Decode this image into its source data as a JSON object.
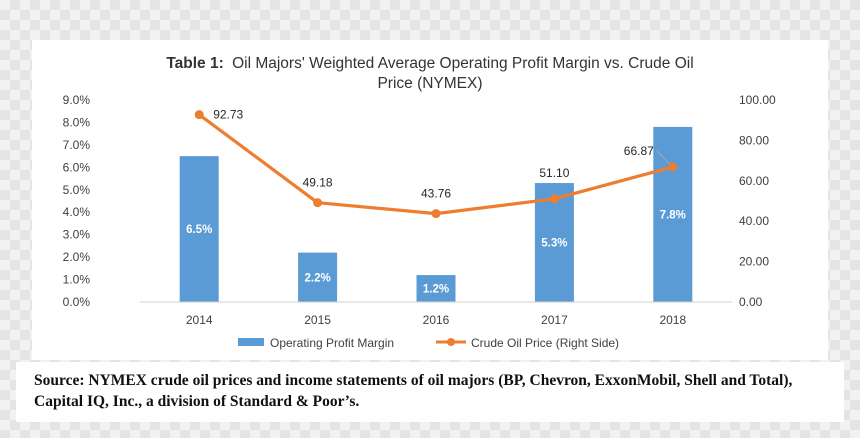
{
  "chart_data": {
    "type": "bar+line",
    "title": {
      "prefix": "Table 1:",
      "line1": "Oil Majors' Weighted Average Operating Profit Margin vs. Crude Oil",
      "line2": "Price (NYMEX)"
    },
    "categories": [
      "2014",
      "2015",
      "2016",
      "2017",
      "2018"
    ],
    "bar_series": {
      "name": "Operating Profit Margin",
      "values": [
        6.5,
        2.2,
        1.2,
        5.3,
        7.8
      ],
      "labels": [
        "6.5%",
        "2.2%",
        "1.2%",
        "5.3%",
        "7.8%"
      ],
      "color": "#5b9bd5",
      "axis": "left"
    },
    "line_series": {
      "name": "Crude Oil Price (Right Side)",
      "values": [
        92.73,
        49.18,
        43.76,
        51.1,
        66.87
      ],
      "labels": [
        "92.73",
        "49.18",
        "43.76",
        "51.10",
        "66.87"
      ],
      "color": "#ed7d31",
      "axis": "right"
    },
    "left_axis": {
      "min": 0,
      "max": 9,
      "step": 1,
      "ticks": [
        "0.0%",
        "1.0%",
        "2.0%",
        "3.0%",
        "4.0%",
        "5.0%",
        "6.0%",
        "7.0%",
        "8.0%",
        "9.0%"
      ]
    },
    "right_axis": {
      "min": 0,
      "max": 100,
      "step": 20,
      "ticks": [
        "0.00",
        "20.00",
        "40.00",
        "60.00",
        "80.00",
        "100.00"
      ]
    },
    "grid": false,
    "legend_position": "bottom"
  },
  "caption": "Source: NYMEX crude oil prices and income statements of oil majors (BP, Chevron, ExxonMobil, Shell and Total), Capital IQ, Inc., a division of Standard & Poor’s."
}
